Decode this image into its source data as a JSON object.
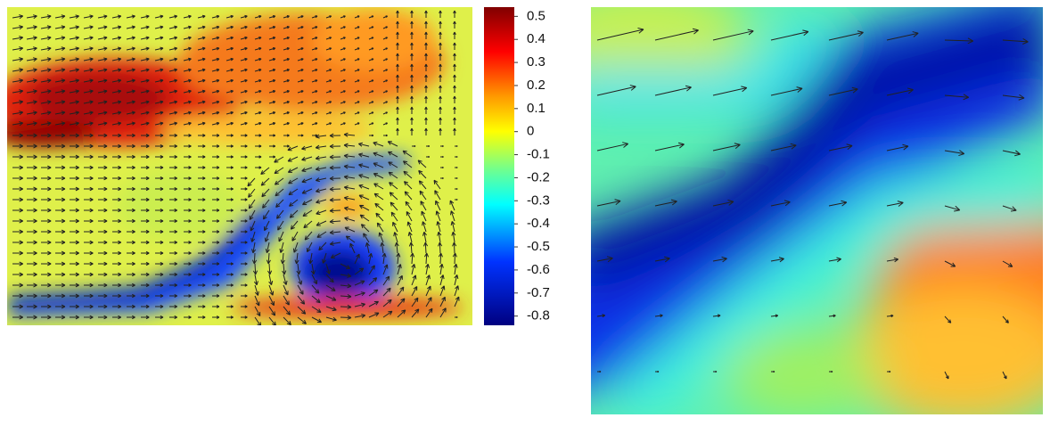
{
  "colorbar": {
    "lim": [
      -0.84,
      0.54
    ],
    "ticks": [
      0.5,
      0.4,
      0.3,
      0.2,
      0.1,
      0,
      -0.1,
      -0.2,
      -0.3,
      -0.4,
      -0.5,
      -0.6,
      -0.7,
      -0.8
    ]
  }
}
